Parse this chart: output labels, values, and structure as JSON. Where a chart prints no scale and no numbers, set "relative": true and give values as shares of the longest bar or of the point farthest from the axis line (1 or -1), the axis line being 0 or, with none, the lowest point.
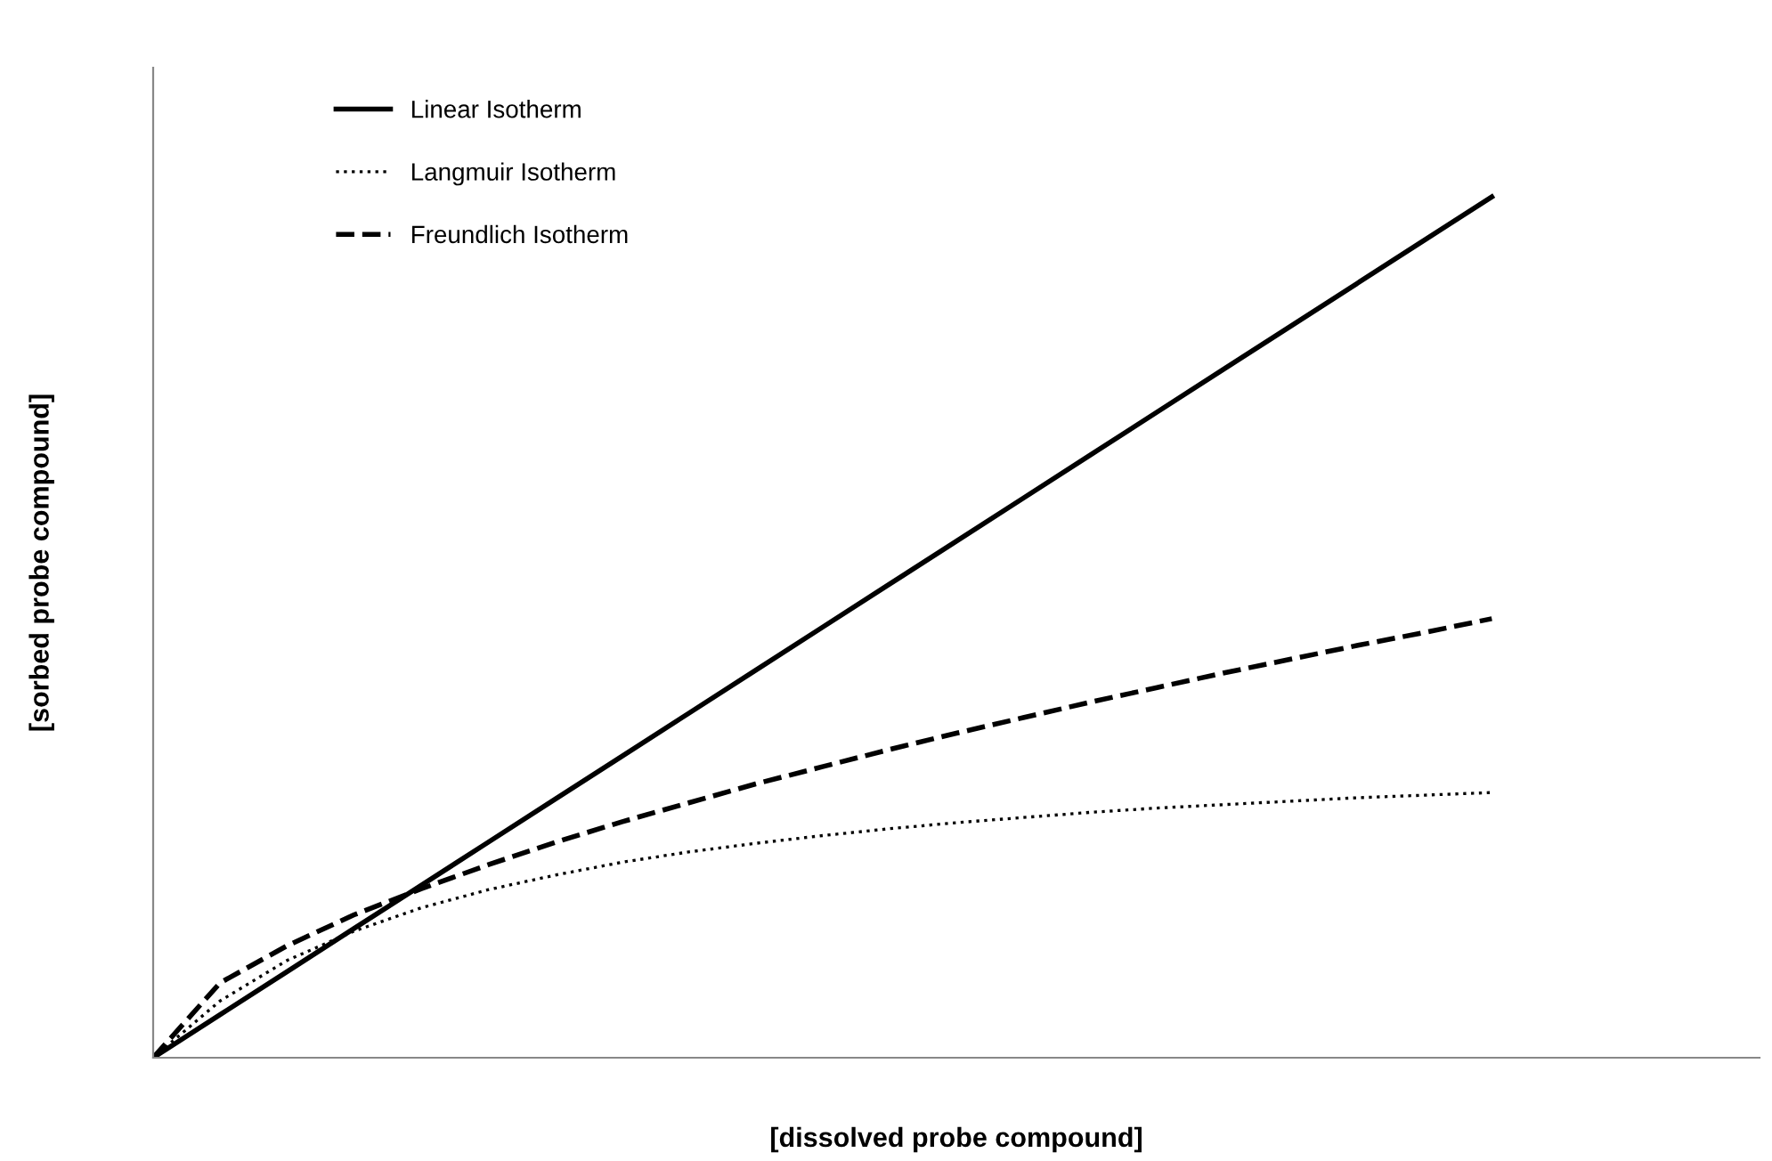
{
  "chart_data": {
    "type": "line",
    "relative": true,
    "xlabel": "[dissolved probe compound]",
    "ylabel": "[sorbed probe compound]",
    "legend": "top left",
    "marker": "none",
    "categories": [
      null,
      null,
      null,
      null,
      null,
      null,
      null,
      null,
      null,
      null,
      null,
      null,
      null,
      null,
      null,
      null,
      null,
      null,
      null,
      null,
      null,
      null,
      null,
      null,
      null
    ],
    "series": [
      {
        "name": "Linear Isotherm",
        "color": "#000000",
        "line_style": "solid",
        "values": [
          0,
          0.05,
          0.1,
          0.15,
          0.2,
          0.25,
          0.3,
          0.35,
          0.4,
          0.45,
          0.5,
          0.55,
          0.6,
          0.65,
          0.7,
          0.75,
          0.8,
          0.85,
          0.9,
          0.95,
          1,
          null,
          null,
          null,
          null
        ]
      },
      {
        "name": "Langmuir Isotherm",
        "color": "#000000",
        "line_style": "dotted",
        "values": [
          0,
          0.066,
          0.113,
          0.147,
          0.174,
          0.195,
          0.212,
          0.227,
          0.239,
          0.249,
          0.258,
          0.266,
          0.273,
          0.279,
          0.285,
          0.29,
          0.294,
          0.298,
          0.302,
          0.305,
          0.308,
          null,
          null,
          null,
          null
        ]
      },
      {
        "name": "Freundlich Isotherm",
        "color": "#000000",
        "line_style": "dashed",
        "values": [
          0,
          0.087,
          0.13,
          0.166,
          0.196,
          0.224,
          0.25,
          0.274,
          0.296,
          0.318,
          0.338,
          0.358,
          0.377,
          0.395,
          0.413,
          0.43,
          0.447,
          0.463,
          0.479,
          0.494,
          0.51,
          null,
          null,
          null,
          null
        ]
      }
    ]
  }
}
